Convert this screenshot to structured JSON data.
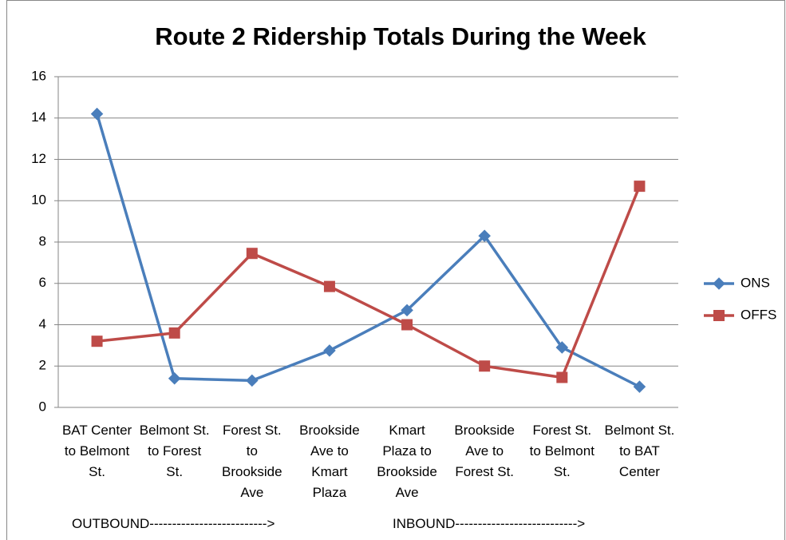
{
  "chart_data": {
    "type": "line",
    "title": "Route 2 Ridership Totals During the Week",
    "categories": [
      "BAT Center to Belmont St.",
      "Belmont St. to Forest St.",
      "Forest St. to Brookside Ave",
      "Brookside Ave to Kmart Plaza",
      "Kmart Plaza to Brookside Ave",
      "Brookside Ave to Forest St.",
      "Forest St. to Belmont St.",
      "Belmont St. to BAT Center"
    ],
    "series": [
      {
        "name": "ONS",
        "color": "#4a7ebb",
        "values": [
          14.2,
          1.4,
          1.3,
          2.75,
          4.7,
          8.3,
          2.9,
          1.0
        ]
      },
      {
        "name": "OFFS",
        "color": "#be4b48",
        "values": [
          3.2,
          3.6,
          7.45,
          5.85,
          4.0,
          2.0,
          1.45,
          10.7
        ]
      }
    ],
    "ylim": [
      0,
      16
    ],
    "yticks": [
      0,
      2,
      4,
      6,
      8,
      10,
      12,
      14,
      16
    ],
    "grid": true,
    "legend": "right",
    "annotations": [
      "OUTBOUND-------------------------->",
      "INBOUND--------------------------->"
    ]
  }
}
